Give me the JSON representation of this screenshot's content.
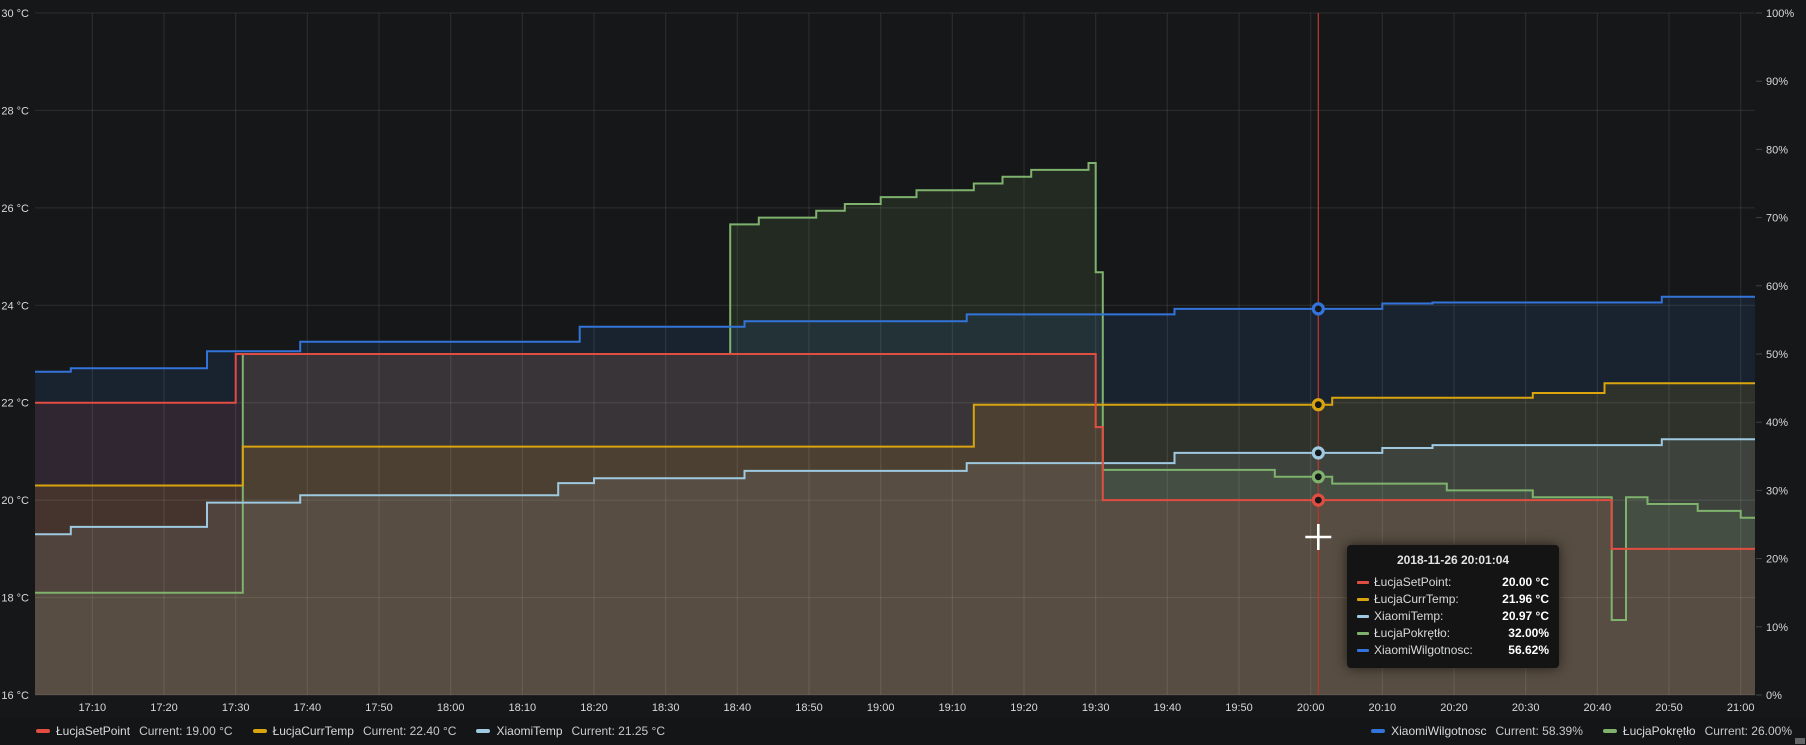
{
  "panel": {
    "background": "#161719"
  },
  "chart_data": {
    "type": "area",
    "title": "",
    "grid": true,
    "legend_position": "bottom",
    "x_axis": {
      "start": "17:02",
      "end": "21:02",
      "ticks": [
        "17:10",
        "17:20",
        "17:30",
        "17:40",
        "17:50",
        "18:00",
        "18:10",
        "18:20",
        "18:30",
        "18:40",
        "18:50",
        "19:00",
        "19:10",
        "19:20",
        "19:30",
        "19:40",
        "19:50",
        "20:00",
        "20:10",
        "20:20",
        "20:30",
        "20:40",
        "20:50",
        "21:00"
      ]
    },
    "y_left": {
      "unit": "°C",
      "min": 16,
      "max": 30,
      "step": 2,
      "labels": [
        "30 °C",
        "28 °C",
        "26 °C",
        "24 °C",
        "22 °C",
        "20 °C",
        "18 °C",
        "16 °C"
      ]
    },
    "y_right": {
      "unit": "%",
      "min": 0,
      "max": 100,
      "step": 10,
      "labels": [
        "100%",
        "90%",
        "80%",
        "70%",
        "60%",
        "50%",
        "40%",
        "30%",
        "20%",
        "10%",
        "0%"
      ]
    },
    "series": [
      {
        "name": "ŁucjaSetPoint",
        "slug": "lucja-set-point",
        "axis": "left",
        "color": "#e24d42",
        "current": "19.00 °C",
        "points": [
          [
            "17:02",
            22
          ],
          [
            "17:30",
            23
          ],
          [
            "19:30",
            21.5
          ],
          [
            "19:31",
            20
          ],
          [
            "20:42",
            19
          ]
        ]
      },
      {
        "name": "ŁucjaCurrTemp",
        "slug": "lucja-curr-temp",
        "axis": "left",
        "color": "#d9a40e",
        "current": "22.40 °C",
        "points": [
          [
            "17:02",
            20.3
          ],
          [
            "17:31",
            21.1
          ],
          [
            "19:13",
            21.96
          ],
          [
            "20:03",
            22.1
          ],
          [
            "20:31",
            22.2
          ],
          [
            "20:41",
            22.4
          ]
        ]
      },
      {
        "name": "XiaomiTemp",
        "slug": "xiaomi-temp",
        "axis": "left",
        "color": "#9ec9e0",
        "current": "21.25 °C",
        "points": [
          [
            "17:02",
            19.3
          ],
          [
            "17:07",
            19.45
          ],
          [
            "17:26",
            19.95
          ],
          [
            "17:39",
            20.1
          ],
          [
            "18:15",
            20.35
          ],
          [
            "18:20",
            20.45
          ],
          [
            "18:41",
            20.6
          ],
          [
            "19:12",
            20.76
          ],
          [
            "19:41",
            20.97
          ],
          [
            "20:10",
            21.07
          ],
          [
            "20:17",
            21.13
          ],
          [
            "20:49",
            21.25
          ]
        ]
      },
      {
        "name": "XiaomiWilgotnosc",
        "slug": "xiaomi-wilgotnosc",
        "axis": "right",
        "color": "#3274d9",
        "current": "58.39%",
        "points": [
          [
            "17:02",
            47.4
          ],
          [
            "17:07",
            47.9
          ],
          [
            "17:26",
            50.4
          ],
          [
            "17:39",
            51.8
          ],
          [
            "18:18",
            54
          ],
          [
            "18:41",
            54.8
          ],
          [
            "19:12",
            55.8
          ],
          [
            "19:41",
            56.62
          ],
          [
            "20:10",
            57.4
          ],
          [
            "20:17",
            57.55
          ],
          [
            "20:49",
            58.39
          ]
        ]
      },
      {
        "name": "ŁucjaPokrętło",
        "slug": "lucja-pokretlo",
        "axis": "right",
        "color": "#7eb26d",
        "current": "26.00%",
        "points": [
          [
            "17:02",
            15
          ],
          [
            "17:31",
            50
          ],
          [
            "18:39",
            69
          ],
          [
            "18:43",
            70
          ],
          [
            "18:51",
            71
          ],
          [
            "18:55",
            72
          ],
          [
            "19:00",
            73
          ],
          [
            "19:05",
            74
          ],
          [
            "19:13",
            75
          ],
          [
            "19:17",
            76
          ],
          [
            "19:21",
            77
          ],
          [
            "19:29",
            78
          ],
          [
            "19:30",
            62
          ],
          [
            "19:31",
            33
          ],
          [
            "19:55",
            32
          ],
          [
            "20:03",
            31
          ],
          [
            "20:19",
            30
          ],
          [
            "20:31",
            29
          ],
          [
            "20:42",
            11
          ],
          [
            "20:44",
            29
          ],
          [
            "20:47",
            28
          ],
          [
            "20:54",
            27
          ],
          [
            "21:00",
            26
          ]
        ]
      }
    ],
    "draw_order": [
      "lucja-pokretlo",
      "xiaomi-wilgotnosc",
      "xiaomi-temp",
      "lucja-curr-temp",
      "lucja-set-point"
    ]
  },
  "crosshair": {
    "time": "20:01:04",
    "color": "#b5382e"
  },
  "tooltip": {
    "timestamp": "2018-11-26 20:01:04",
    "rows": [
      {
        "name": "ŁucjaSetPoint:",
        "value": "20.00 °C",
        "v": 20.0,
        "axis": "left",
        "color": "#e24d42"
      },
      {
        "name": "ŁucjaCurrTemp:",
        "value": "21.96 °C",
        "v": 21.96,
        "axis": "left",
        "color": "#d9a40e"
      },
      {
        "name": "XiaomiTemp:",
        "value": "20.97 °C",
        "v": 20.97,
        "axis": "left",
        "color": "#9ec9e0"
      },
      {
        "name": "ŁucjaPokrętło:",
        "value": "32.00%",
        "v": 32.0,
        "axis": "right",
        "color": "#7eb26d"
      },
      {
        "name": "XiaomiWilgotnosc:",
        "value": "56.62%",
        "v": 56.62,
        "axis": "right",
        "color": "#3274d9"
      }
    ]
  },
  "legend": {
    "left": [
      {
        "name": "ŁucjaSetPoint",
        "current_label": "Current: 19.00 °C",
        "color": "#e24d42"
      },
      {
        "name": "ŁucjaCurrTemp",
        "current_label": "Current: 22.40 °C",
        "color": "#d9a40e"
      },
      {
        "name": "XiaomiTemp",
        "current_label": "Current: 21.25 °C",
        "color": "#9ec9e0"
      }
    ],
    "right": [
      {
        "name": "XiaomiWilgotnosc",
        "current_label": "Current: 58.39%",
        "color": "#3274d9"
      },
      {
        "name": "ŁucjaPokrętło",
        "current_label": "Current: 26.00%",
        "color": "#7eb26d"
      }
    ]
  }
}
